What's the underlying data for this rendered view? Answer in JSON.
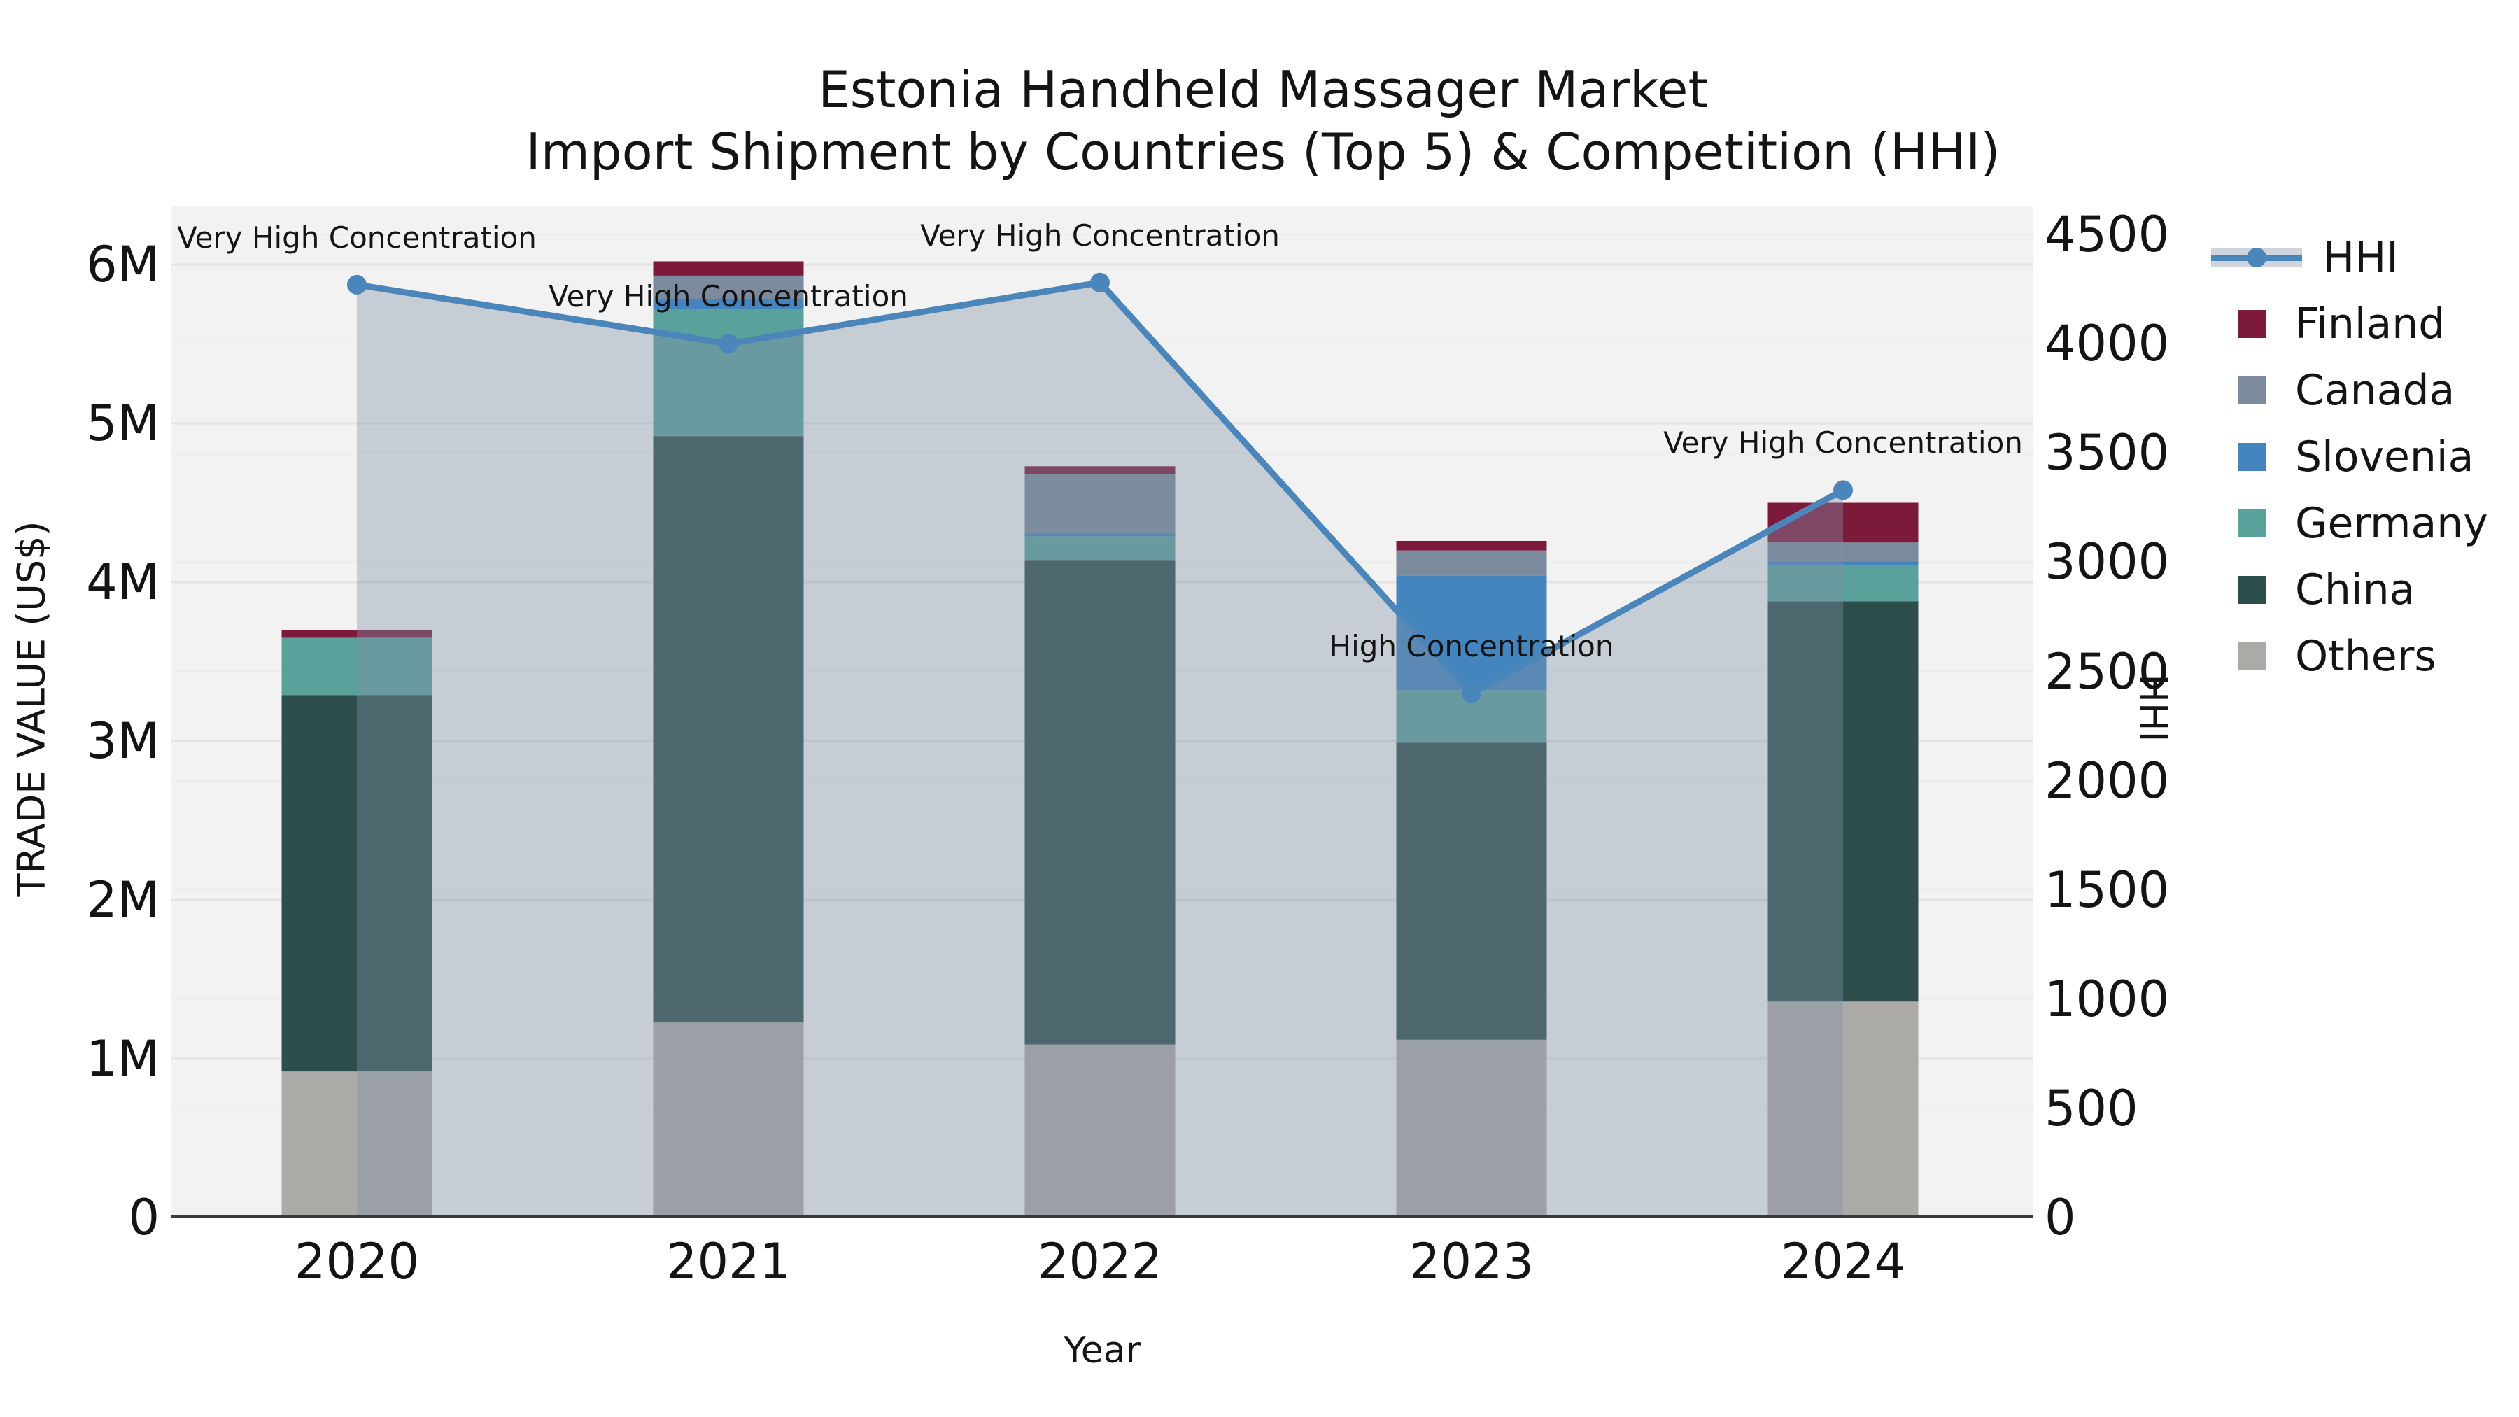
{
  "title": {
    "line1": "Estonia Handheld Massager Market",
    "line2": "Import Shipment by Countries (Top 5) & Competition (HHI)"
  },
  "axes": {
    "left_title": "TRADE VALUE (US$)",
    "left_ticks": [
      "0",
      "1M",
      "2M",
      "3M",
      "4M",
      "5M",
      "6M"
    ],
    "right_title": "HHI",
    "right_ticks": [
      "0",
      "500",
      "1000",
      "1500",
      "2000",
      "2500",
      "3000",
      "3500",
      "4000",
      "4500"
    ],
    "x_title": "Year",
    "x_ticks": [
      "2020",
      "2021",
      "2022",
      "2023",
      "2024"
    ]
  },
  "legend": {
    "items": [
      {
        "label": "HHI",
        "type": "line",
        "color": "#4a86ba"
      },
      {
        "label": "Finland",
        "type": "swatch",
        "color": "#7c1a3c"
      },
      {
        "label": "Canada",
        "type": "swatch",
        "color": "#7b8b9d"
      },
      {
        "label": "Slovenia",
        "type": "swatch",
        "color": "#4485bf"
      },
      {
        "label": "Germany",
        "type": "swatch",
        "color": "#5aa19c"
      },
      {
        "label": "China",
        "type": "swatch",
        "color": "#2e4e4c"
      },
      {
        "label": "Others",
        "type": "swatch",
        "color": "#abaaa7"
      }
    ]
  },
  "chart_data": {
    "type": "combo",
    "subtype": "stacked-bar + line (secondary axis) + area fill under line",
    "title": "Estonia Handheld Massager Market — Import Shipment by Countries (Top 5) & Competition (HHI)",
    "categories": [
      "2020",
      "2021",
      "2022",
      "2023",
      "2024"
    ],
    "bar": {
      "type": "bar",
      "stacked": true,
      "unit": "million US$",
      "ylabel": "TRADE VALUE (US$)",
      "ylim": [
        0,
        6.37
      ],
      "series": [
        {
          "name": "Others",
          "color": "#abaaa7",
          "values": [
            0.92,
            1.23,
            1.09,
            1.12,
            1.36
          ]
        },
        {
          "name": "China",
          "color": "#2e4e4c",
          "values": [
            2.37,
            3.69,
            3.05,
            1.87,
            2.52
          ]
        },
        {
          "name": "Germany",
          "color": "#5aa19c",
          "values": [
            0.36,
            0.8,
            0.15,
            0.33,
            0.23
          ]
        },
        {
          "name": "Slovenia",
          "color": "#4485bf",
          "values": [
            0.0,
            0.06,
            0.02,
            0.72,
            0.02
          ]
        },
        {
          "name": "Canada",
          "color": "#7b8b9d",
          "values": [
            0.0,
            0.15,
            0.37,
            0.16,
            0.12
          ]
        },
        {
          "name": "Finland",
          "color": "#7c1a3c",
          "values": [
            0.05,
            0.09,
            0.05,
            0.06,
            0.25
          ]
        }
      ],
      "totals": [
        3.7,
        6.02,
        4.73,
        4.26,
        4.5
      ]
    },
    "line": {
      "name": "HHI",
      "axis": "right",
      "ylabel": "HHI",
      "ylim": [
        0,
        4630
      ],
      "color": "#4a86ba",
      "area_fill": "rgba(130,144,165,0.38)",
      "values": [
        4270,
        4000,
        4280,
        2400,
        3330
      ]
    },
    "annotations": [
      {
        "x": "2020",
        "text": "Very High Concentration"
      },
      {
        "x": "2021",
        "text": "Very High Concentration"
      },
      {
        "x": "2022",
        "text": "Very High Concentration"
      },
      {
        "x": "2023",
        "text": "High Concentration"
      },
      {
        "x": "2024",
        "text": "Very High Concentration"
      }
    ],
    "legend_position": "right",
    "grid": true
  },
  "colors": {
    "plot_background": "#f2f2f2",
    "grid_major": "#e3e3e3",
    "grid_secondary": "#ececec",
    "axis_line": "#3a3a3a",
    "text": "#141414",
    "hhi_line": "#4a86ba",
    "hhi_area_on_white": "#d0d5dd"
  }
}
